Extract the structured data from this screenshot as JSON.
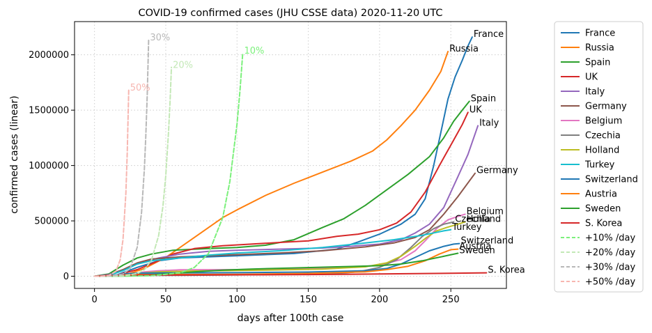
{
  "chart_data": {
    "type": "line",
    "title": "COVID-19 confirmed cases (JHU CSSE data) 2020-11-20 UTC",
    "xlabel": "days after 100th case",
    "ylabel": "confirmed cases (linear)",
    "xlim": [
      -14,
      289
    ],
    "ylim": [
      -110000,
      2300000
    ],
    "x_ticks": [
      0,
      50,
      100,
      150,
      200,
      250
    ],
    "y_ticks": [
      0,
      500000,
      1000000,
      1500000,
      2000000
    ],
    "grid": true,
    "legend_position": "outside-right",
    "series": [
      {
        "name": "France",
        "color": "#1f77b4",
        "dash": "",
        "end_label": "France",
        "points": [
          [
            0,
            0
          ],
          [
            15,
            8000
          ],
          [
            30,
            80000
          ],
          [
            45,
            140000
          ],
          [
            60,
            165000
          ],
          [
            100,
            185000
          ],
          [
            140,
            205000
          ],
          [
            170,
            245000
          ],
          [
            185,
            310000
          ],
          [
            200,
            380000
          ],
          [
            215,
            470000
          ],
          [
            225,
            560000
          ],
          [
            232,
            700000
          ],
          [
            238,
            1000000
          ],
          [
            243,
            1300000
          ],
          [
            248,
            1600000
          ],
          [
            253,
            1800000
          ],
          [
            258,
            1950000
          ],
          [
            262,
            2080000
          ],
          [
            265,
            2160000
          ]
        ]
      },
      {
        "name": "Russia",
        "color": "#ff7f0e",
        "dash": "",
        "end_label": "Russia",
        "points": [
          [
            0,
            0
          ],
          [
            20,
            4000
          ],
          [
            35,
            70000
          ],
          [
            50,
            170000
          ],
          [
            70,
            350000
          ],
          [
            90,
            530000
          ],
          [
            100,
            600000
          ],
          [
            120,
            730000
          ],
          [
            140,
            840000
          ],
          [
            160,
            940000
          ],
          [
            180,
            1040000
          ],
          [
            195,
            1130000
          ],
          [
            205,
            1230000
          ],
          [
            215,
            1360000
          ],
          [
            225,
            1500000
          ],
          [
            235,
            1680000
          ],
          [
            243,
            1850000
          ],
          [
            248,
            2030000
          ]
        ]
      },
      {
        "name": "Spain",
        "color": "#2ca02c",
        "dash": "",
        "end_label": "Spain",
        "points": [
          [
            0,
            0
          ],
          [
            10,
            20000
          ],
          [
            20,
            100000
          ],
          [
            30,
            165000
          ],
          [
            40,
            200000
          ],
          [
            55,
            235000
          ],
          [
            80,
            250000
          ],
          [
            100,
            260000
          ],
          [
            120,
            280000
          ],
          [
            140,
            330000
          ],
          [
            160,
            440000
          ],
          [
            175,
            520000
          ],
          [
            190,
            640000
          ],
          [
            205,
            780000
          ],
          [
            220,
            920000
          ],
          [
            235,
            1080000
          ],
          [
            245,
            1250000
          ],
          [
            252,
            1400000
          ],
          [
            258,
            1500000
          ],
          [
            263,
            1580000
          ]
        ]
      },
      {
        "name": "UK",
        "color": "#d62728",
        "dash": "",
        "end_label": "UK",
        "points": [
          [
            0,
            0
          ],
          [
            15,
            8000
          ],
          [
            30,
            60000
          ],
          [
            45,
            140000
          ],
          [
            55,
            200000
          ],
          [
            70,
            250000
          ],
          [
            90,
            275000
          ],
          [
            110,
            290000
          ],
          [
            130,
            305000
          ],
          [
            150,
            320000
          ],
          [
            170,
            360000
          ],
          [
            185,
            380000
          ],
          [
            200,
            420000
          ],
          [
            212,
            480000
          ],
          [
            222,
            580000
          ],
          [
            232,
            760000
          ],
          [
            242,
            1000000
          ],
          [
            252,
            1230000
          ],
          [
            258,
            1370000
          ],
          [
            262,
            1480000
          ]
        ]
      },
      {
        "name": "Italy",
        "color": "#9467bd",
        "dash": "",
        "end_label": "Italy",
        "points": [
          [
            0,
            0
          ],
          [
            10,
            15000
          ],
          [
            20,
            60000
          ],
          [
            30,
            110000
          ],
          [
            45,
            165000
          ],
          [
            60,
            200000
          ],
          [
            80,
            225000
          ],
          [
            100,
            235000
          ],
          [
            130,
            245000
          ],
          [
            160,
            255000
          ],
          [
            180,
            270000
          ],
          [
            200,
            290000
          ],
          [
            215,
            330000
          ],
          [
            225,
            390000
          ],
          [
            235,
            470000
          ],
          [
            245,
            620000
          ],
          [
            255,
            900000
          ],
          [
            262,
            1100000
          ],
          [
            269,
            1360000
          ]
        ]
      },
      {
        "name": "Germany",
        "color": "#8c564b",
        "dash": "",
        "end_label": "Germany",
        "points": [
          [
            0,
            0
          ],
          [
            10,
            10000
          ],
          [
            20,
            60000
          ],
          [
            30,
            120000
          ],
          [
            40,
            155000
          ],
          [
            60,
            175000
          ],
          [
            80,
            185000
          ],
          [
            100,
            195000
          ],
          [
            130,
            210000
          ],
          [
            160,
            230000
          ],
          [
            190,
            265000
          ],
          [
            210,
            300000
          ],
          [
            225,
            350000
          ],
          [
            235,
            420000
          ],
          [
            245,
            560000
          ],
          [
            255,
            720000
          ],
          [
            263,
            860000
          ],
          [
            267,
            930000
          ]
        ]
      },
      {
        "name": "Belgium",
        "color": "#e377c2",
        "dash": "",
        "end_label": "Belgium",
        "points": [
          [
            0,
            0
          ],
          [
            15,
            3000
          ],
          [
            25,
            15000
          ],
          [
            35,
            40000
          ],
          [
            45,
            50000
          ],
          [
            60,
            58000
          ],
          [
            100,
            60000
          ],
          [
            150,
            68000
          ],
          [
            180,
            80000
          ],
          [
            200,
            100000
          ],
          [
            215,
            150000
          ],
          [
            225,
            230000
          ],
          [
            232,
            320000
          ],
          [
            240,
            430000
          ],
          [
            248,
            510000
          ],
          [
            255,
            540000
          ],
          [
            260,
            560000
          ]
        ]
      },
      {
        "name": "Czechia",
        "color": "#7f7f7f",
        "dash": "",
        "end_label": "Czechia",
        "points": [
          [
            0,
            0
          ],
          [
            20,
            2000
          ],
          [
            40,
            7000
          ],
          [
            70,
            9000
          ],
          [
            100,
            12000
          ],
          [
            140,
            17000
          ],
          [
            170,
            25000
          ],
          [
            185,
            40000
          ],
          [
            200,
            80000
          ],
          [
            212,
            150000
          ],
          [
            222,
            260000
          ],
          [
            230,
            360000
          ],
          [
            238,
            430000
          ],
          [
            245,
            470000
          ],
          [
            252,
            490000
          ]
        ]
      },
      {
        "name": "Holland",
        "color": "#bcbd22",
        "dash": "",
        "end_label": "Holland",
        "points": [
          [
            0,
            0
          ],
          [
            15,
            3000
          ],
          [
            25,
            15000
          ],
          [
            35,
            30000
          ],
          [
            45,
            40000
          ],
          [
            70,
            47000
          ],
          [
            120,
            55000
          ],
          [
            160,
            65000
          ],
          [
            190,
            85000
          ],
          [
            205,
            120000
          ],
          [
            215,
            180000
          ],
          [
            225,
            270000
          ],
          [
            233,
            350000
          ],
          [
            240,
            410000
          ],
          [
            247,
            440000
          ],
          [
            255,
            470000
          ],
          [
            260,
            490000
          ]
        ]
      },
      {
        "name": "Turkey",
        "color": "#17becf",
        "dash": "",
        "end_label": "Turkey",
        "points": [
          [
            0,
            0
          ],
          [
            10,
            8000
          ],
          [
            20,
            50000
          ],
          [
            30,
            110000
          ],
          [
            40,
            140000
          ],
          [
            60,
            165000
          ],
          [
            80,
            190000
          ],
          [
            100,
            210000
          ],
          [
            130,
            230000
          ],
          [
            160,
            260000
          ],
          [
            190,
            300000
          ],
          [
            210,
            330000
          ],
          [
            230,
            370000
          ],
          [
            245,
            410000
          ],
          [
            250,
            420000
          ]
        ]
      },
      {
        "name": "Switzerland",
        "color": "#1f77b4",
        "dash": "",
        "end_label": "Switzerland",
        "points": [
          [
            0,
            0
          ],
          [
            10,
            5000
          ],
          [
            20,
            20000
          ],
          [
            30,
            28000
          ],
          [
            50,
            30000
          ],
          [
            100,
            32000
          ],
          [
            150,
            38000
          ],
          [
            190,
            50000
          ],
          [
            205,
            70000
          ],
          [
            215,
            110000
          ],
          [
            225,
            170000
          ],
          [
            235,
            230000
          ],
          [
            245,
            270000
          ],
          [
            252,
            290000
          ],
          [
            256,
            295000
          ]
        ]
      },
      {
        "name": "Austria",
        "color": "#ff7f0e",
        "dash": "",
        "end_label": "Austria",
        "points": [
          [
            0,
            0
          ],
          [
            10,
            5000
          ],
          [
            20,
            13000
          ],
          [
            30,
            15000
          ],
          [
            60,
            16000
          ],
          [
            100,
            18000
          ],
          [
            150,
            25000
          ],
          [
            190,
            40000
          ],
          [
            205,
            60000
          ],
          [
            220,
            90000
          ],
          [
            232,
            140000
          ],
          [
            242,
            200000
          ],
          [
            250,
            240000
          ],
          [
            255,
            245000
          ]
        ]
      },
      {
        "name": "Sweden",
        "color": "#2ca02c",
        "dash": "",
        "end_label": "Sweden",
        "points": [
          [
            0,
            0
          ],
          [
            15,
            2000
          ],
          [
            30,
            8000
          ],
          [
            50,
            20000
          ],
          [
            70,
            40000
          ],
          [
            90,
            55000
          ],
          [
            110,
            65000
          ],
          [
            140,
            75000
          ],
          [
            170,
            85000
          ],
          [
            200,
            95000
          ],
          [
            215,
            110000
          ],
          [
            230,
            140000
          ],
          [
            245,
            180000
          ],
          [
            255,
            208000
          ]
        ]
      },
      {
        "name": "S. Korea",
        "color": "#d62728",
        "dash": "",
        "end_label": "S. Korea",
        "points": [
          [
            0,
            0
          ],
          [
            5,
            3000
          ],
          [
            10,
            7000
          ],
          [
            20,
            9500
          ],
          [
            50,
            11000
          ],
          [
            100,
            13000
          ],
          [
            150,
            15000
          ],
          [
            200,
            20000
          ],
          [
            250,
            27000
          ],
          [
            275,
            31000
          ]
        ]
      },
      {
        "name": "+10% /day",
        "color": "#7bf07b",
        "dash": "6,3",
        "end_label": "10%",
        "points": [
          [
            0,
            100
          ],
          [
            20,
            673
          ],
          [
            40,
            4526
          ],
          [
            60,
            30448
          ],
          [
            70,
            78975
          ],
          [
            80,
            204840
          ],
          [
            90,
            531302
          ],
          [
            95,
            855682
          ],
          [
            100,
            1378061
          ],
          [
            102,
            1667454
          ],
          [
            104,
            2017619
          ]
        ]
      },
      {
        "name": "+20% /day",
        "color": "#c3e8b6",
        "dash": "6,3",
        "end_label": "20%",
        "points": [
          [
            0,
            100
          ],
          [
            10,
            619
          ],
          [
            20,
            3834
          ],
          [
            30,
            23738
          ],
          [
            35,
            59068
          ],
          [
            40,
            146977
          ],
          [
            45,
            365726
          ],
          [
            48,
            631975
          ],
          [
            50,
            910044
          ],
          [
            52,
            1310463
          ],
          [
            53,
            1572556
          ],
          [
            54,
            1887067
          ]
        ]
      },
      {
        "name": "+30% /day",
        "color": "#b8b8b8",
        "dash": "6,3",
        "end_label": "30%",
        "points": [
          [
            0,
            100
          ],
          [
            10,
            1379
          ],
          [
            20,
            19005
          ],
          [
            25,
            70564
          ],
          [
            30,
            261999
          ],
          [
            33,
            575597
          ],
          [
            35,
            972758
          ],
          [
            36,
            1264585
          ],
          [
            37,
            1643960
          ],
          [
            38,
            2137149
          ]
        ]
      },
      {
        "name": "+50% /day",
        "color": "#f7b6b0",
        "dash": "6,3",
        "end_label": "50%",
        "points": [
          [
            0,
            100
          ],
          [
            5,
            759
          ],
          [
            10,
            5767
          ],
          [
            15,
            43789
          ],
          [
            18,
            147789
          ],
          [
            20,
            332526
          ],
          [
            22,
            748183
          ],
          [
            23,
            1122275
          ],
          [
            24,
            1683412
          ]
        ]
      }
    ]
  }
}
